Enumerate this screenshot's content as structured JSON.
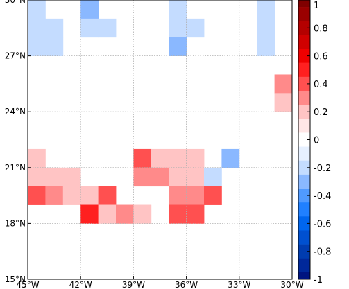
{
  "chart_data": {
    "type": "heatmap",
    "title": "",
    "xlabel": "",
    "ylabel": "",
    "xlim": [
      -45,
      -30
    ],
    "ylim": [
      15,
      30
    ],
    "cell_size_deg": 1,
    "grid": true,
    "x_ticks": [
      {
        "value": -45,
        "label": "45°W"
      },
      {
        "value": -42,
        "label": "42°W"
      },
      {
        "value": -39,
        "label": "39°W"
      },
      {
        "value": -36,
        "label": "36°W"
      },
      {
        "value": -33,
        "label": "33°W"
      },
      {
        "value": -30,
        "label": "30°W"
      }
    ],
    "y_ticks": [
      {
        "value": 15,
        "label": "15°N"
      },
      {
        "value": 18,
        "label": "18°N"
      },
      {
        "value": 21,
        "label": "21°N"
      },
      {
        "value": 24,
        "label": "24°N"
      },
      {
        "value": 27,
        "label": "27°N"
      },
      {
        "value": 30,
        "label": "30°N"
      }
    ],
    "colorbar": {
      "vmin": -1,
      "vmax": 1,
      "ticks": [
        {
          "value": 1,
          "label": "1"
        },
        {
          "value": 0.8,
          "label": "0.8"
        },
        {
          "value": 0.6,
          "label": "0.6"
        },
        {
          "value": 0.4,
          "label": "0.4"
        },
        {
          "value": 0.2,
          "label": "0.2"
        },
        {
          "value": 0,
          "label": "0"
        },
        {
          "value": -0.2,
          "label": "-0.2"
        },
        {
          "value": -0.4,
          "label": "-0.4"
        },
        {
          "value": -0.6,
          "label": "-0.6"
        },
        {
          "value": -0.8,
          "label": "-0.8"
        },
        {
          "value": -1,
          "label": "-1"
        }
      ],
      "levels": [
        {
          "from": 0.95,
          "to": 1.0,
          "color": "#800000"
        },
        {
          "from": 0.85,
          "to": 0.95,
          "color": "#9a0000"
        },
        {
          "from": 0.75,
          "to": 0.85,
          "color": "#b40000"
        },
        {
          "from": 0.65,
          "to": 0.75,
          "color": "#d00000"
        },
        {
          "from": 0.55,
          "to": 0.65,
          "color": "#ee0000"
        },
        {
          "from": 0.45,
          "to": 0.55,
          "color": "#ff2020"
        },
        {
          "from": 0.35,
          "to": 0.45,
          "color": "#ff5050"
        },
        {
          "from": 0.25,
          "to": 0.35,
          "color": "#ff8a8a"
        },
        {
          "from": 0.15,
          "to": 0.25,
          "color": "#ffc4c4"
        },
        {
          "from": 0.05,
          "to": 0.15,
          "color": "#ffe6e6"
        },
        {
          "from": -0.05,
          "to": 0.05,
          "color": "#ffffff"
        },
        {
          "from": -0.15,
          "to": -0.05,
          "color": "#e6f0ff"
        },
        {
          "from": -0.25,
          "to": -0.15,
          "color": "#c4dcff"
        },
        {
          "from": -0.35,
          "to": -0.25,
          "color": "#8ab8ff"
        },
        {
          "from": -0.45,
          "to": -0.35,
          "color": "#509aff"
        },
        {
          "from": -0.55,
          "to": -0.45,
          "color": "#2080ff"
        },
        {
          "from": -0.65,
          "to": -0.55,
          "color": "#0066ee"
        },
        {
          "from": -0.75,
          "to": -0.65,
          "color": "#0050d0"
        },
        {
          "from": -0.85,
          "to": -0.75,
          "color": "#003cb0"
        },
        {
          "from": -0.95,
          "to": -0.85,
          "color": "#00289a"
        },
        {
          "from": -1.0,
          "to": -0.95,
          "color": "#001480"
        }
      ]
    },
    "cells": [
      {
        "lon": -45,
        "lat": 29,
        "value": -0.2
      },
      {
        "lon": -42,
        "lat": 29,
        "value": -0.3
      },
      {
        "lon": -37,
        "lat": 29,
        "value": -0.2
      },
      {
        "lon": -32,
        "lat": 29,
        "value": -0.2
      },
      {
        "lon": -45,
        "lat": 28,
        "value": -0.2
      },
      {
        "lon": -44,
        "lat": 28,
        "value": -0.2
      },
      {
        "lon": -42,
        "lat": 28,
        "value": -0.2
      },
      {
        "lon": -41,
        "lat": 28,
        "value": -0.2
      },
      {
        "lon": -37,
        "lat": 28,
        "value": -0.2
      },
      {
        "lon": -36,
        "lat": 28,
        "value": -0.2
      },
      {
        "lon": -32,
        "lat": 28,
        "value": -0.2
      },
      {
        "lon": -45,
        "lat": 27,
        "value": -0.2
      },
      {
        "lon": -44,
        "lat": 27,
        "value": -0.2
      },
      {
        "lon": -37,
        "lat": 27,
        "value": -0.3
      },
      {
        "lon": -32,
        "lat": 27,
        "value": -0.2
      },
      {
        "lon": -31,
        "lat": 25,
        "value": 0.3
      },
      {
        "lon": -31,
        "lat": 24,
        "value": 0.2
      },
      {
        "lon": -45,
        "lat": 21,
        "value": 0.2
      },
      {
        "lon": -39,
        "lat": 21,
        "value": 0.4
      },
      {
        "lon": -38,
        "lat": 21,
        "value": 0.2
      },
      {
        "lon": -37,
        "lat": 21,
        "value": 0.2
      },
      {
        "lon": -36,
        "lat": 21,
        "value": 0.2
      },
      {
        "lon": -34,
        "lat": 21,
        "value": -0.3
      },
      {
        "lon": -45,
        "lat": 20,
        "value": 0.2
      },
      {
        "lon": -44,
        "lat": 20,
        "value": 0.2
      },
      {
        "lon": -43,
        "lat": 20,
        "value": 0.2
      },
      {
        "lon": -39,
        "lat": 20,
        "value": 0.3
      },
      {
        "lon": -38,
        "lat": 20,
        "value": 0.3
      },
      {
        "lon": -37,
        "lat": 20,
        "value": 0.2
      },
      {
        "lon": -36,
        "lat": 20,
        "value": 0.2
      },
      {
        "lon": -35,
        "lat": 20,
        "value": -0.2
      },
      {
        "lon": -45,
        "lat": 19,
        "value": 0.4
      },
      {
        "lon": -44,
        "lat": 19,
        "value": 0.3
      },
      {
        "lon": -43,
        "lat": 19,
        "value": 0.2
      },
      {
        "lon": -42,
        "lat": 19,
        "value": 0.2
      },
      {
        "lon": -41,
        "lat": 19,
        "value": 0.4
      },
      {
        "lon": -37,
        "lat": 19,
        "value": 0.3
      },
      {
        "lon": -36,
        "lat": 19,
        "value": 0.3
      },
      {
        "lon": -35,
        "lat": 19,
        "value": 0.4
      },
      {
        "lon": -42,
        "lat": 18,
        "value": 0.5
      },
      {
        "lon": -41,
        "lat": 18,
        "value": 0.2
      },
      {
        "lon": -40,
        "lat": 18,
        "value": 0.3
      },
      {
        "lon": -39,
        "lat": 18,
        "value": 0.2
      },
      {
        "lon": -37,
        "lat": 18,
        "value": 0.4
      },
      {
        "lon": -36,
        "lat": 18,
        "value": 0.4
      }
    ]
  }
}
